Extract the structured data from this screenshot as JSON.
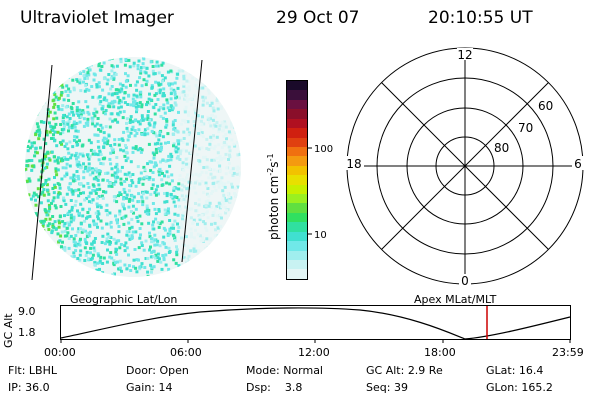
{
  "header": {
    "instrument": "Ultraviolet Imager",
    "date": "29 Oct 07",
    "time": "20:10:55 UT"
  },
  "colorbar": {
    "label": "photon cm⁻²s⁻¹",
    "ticks": [
      "100",
      "10"
    ],
    "colors": [
      "#1a0a2a",
      "#3a0f3a",
      "#6a1040",
      "#8a0f2a",
      "#b01020",
      "#d02010",
      "#e04010",
      "#f07010",
      "#f49a10",
      "#f2c200",
      "#e8e000",
      "#c8f000",
      "#9af020",
      "#60e040",
      "#30e060",
      "#30e0a0",
      "#40e0d0",
      "#70e8e8",
      "#a0eeee",
      "#c8f2f2",
      "#e4f6f6"
    ],
    "unit_sup_text": "photon cm",
    "sup1": "-2",
    "mid": "s",
    "sup2": "-1"
  },
  "polar": {
    "hour_labels": {
      "top": "12",
      "left": "18",
      "right": "6",
      "bottom": "0"
    },
    "lat_labels": [
      "60",
      "70",
      "80"
    ]
  },
  "timeline": {
    "ylabel": "GC Alt",
    "ytick_top": "9.0",
    "ytick_bottom": "1.8",
    "left_title": "Geographic Lat/Lon",
    "right_title": "Apex MLat/MLT",
    "xticks": [
      "00:00",
      "06:00",
      "12:00",
      "18:00",
      "23:59"
    ],
    "marker_color": "#cc0000"
  },
  "info": {
    "row1": [
      {
        "label": "Flt:",
        "value": "LBHL"
      },
      {
        "label": "Door:",
        "value": "Open"
      },
      {
        "label": "Mode:",
        "value": "Normal"
      },
      {
        "label": "GC Alt:",
        "value": "2.9 Re"
      },
      {
        "label": "GLat:",
        "value": "16.4"
      }
    ],
    "row2": [
      {
        "label": "IP:",
        "value": "36.0"
      },
      {
        "label": "Gain:",
        "value": "14"
      },
      {
        "label": "Dsp:",
        "value": "3.8"
      },
      {
        "label": "Seq:",
        "value": "39"
      },
      {
        "label": "GLon:",
        "value": "165.2"
      }
    ]
  }
}
